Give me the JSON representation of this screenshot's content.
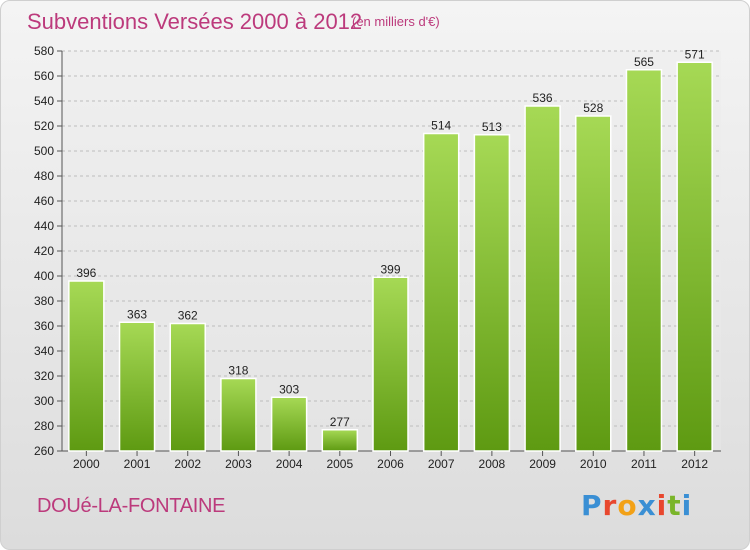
{
  "header": {
    "title": "Subventions Versées 2000 à 2012",
    "unit": "(en milliers d'€)"
  },
  "footer": {
    "town": "DOUé-LA-FONTAINE",
    "brand": [
      "P",
      "r",
      "o",
      "x",
      "i",
      "t",
      "i"
    ],
    "brand_colors": [
      "#3a8fd4",
      "#e8472e",
      "#f2a117",
      "#3a8fd4",
      "#e8472e",
      "#7ab52a",
      "#3a8fd4"
    ]
  },
  "colors": {
    "bar_top": "#a6d955",
    "bar_bottom": "#5e9a12",
    "grid": "#bdbdbd"
  },
  "chart_data": {
    "type": "bar",
    "categories": [
      "2000",
      "2001",
      "2002",
      "2003",
      "2004",
      "2005",
      "2006",
      "2007",
      "2008",
      "2009",
      "2010",
      "2011",
      "2012"
    ],
    "values": [
      396,
      363,
      362,
      318,
      303,
      277,
      399,
      514,
      513,
      536,
      528,
      565,
      571
    ],
    "ylim": [
      260,
      580
    ],
    "yticks": [
      260,
      280,
      300,
      320,
      340,
      360,
      380,
      400,
      420,
      440,
      460,
      480,
      500,
      520,
      540,
      560,
      580
    ],
    "grid": true
  }
}
